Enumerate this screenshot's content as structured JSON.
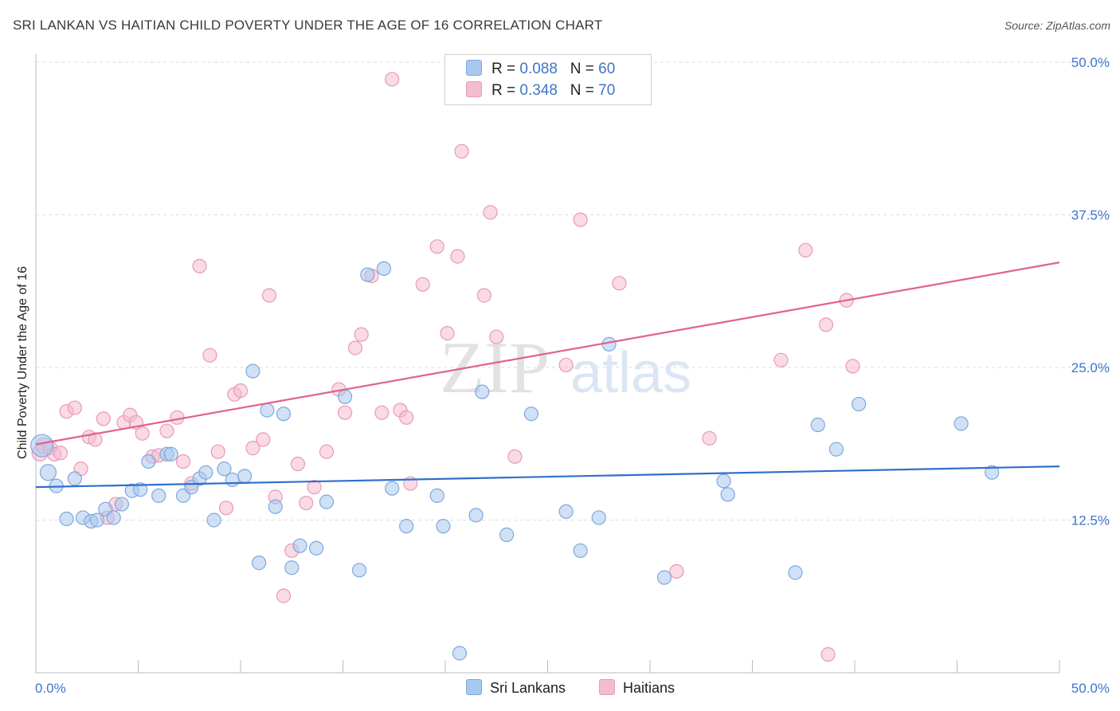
{
  "title": "SRI LANKAN VS HAITIAN CHILD POVERTY UNDER THE AGE OF 16 CORRELATION CHART",
  "source": "Source: ZipAtlas.com",
  "watermark": {
    "zip": "ZIP",
    "atlas": "atlas"
  },
  "legend": {
    "rows": [
      {
        "r_label": "R =",
        "r_value": "0.088",
        "n_label": "N =",
        "n_value": "60"
      },
      {
        "r_label": "R =",
        "r_value": "0.348",
        "n_label": "N =",
        "n_value": "70"
      }
    ]
  },
  "bottom_legend": {
    "series1": "Sri Lankans",
    "series2": "Haitians"
  },
  "colors": {
    "blue_fill": "#a9c8ef",
    "blue_stroke": "#7ea8dd",
    "blue_line": "#2f6fce",
    "pink_fill": "#f4bcd0",
    "pink_stroke": "#e99ab6",
    "pink_line": "#e0628f",
    "tick_text": "#3f75c9",
    "grid": "#dddddd"
  },
  "chart_data": {
    "type": "scatter",
    "title": "SRI LANKAN VS HAITIAN CHILD POVERTY UNDER THE AGE OF 16 CORRELATION CHART",
    "xlabel": "",
    "ylabel": "Child Poverty Under the Age of 16",
    "xlim": [
      0,
      50
    ],
    "ylim": [
      0,
      50
    ],
    "x_tick_labels": [
      "0.0%",
      "50.0%"
    ],
    "y_tick_labels": [
      "12.5%",
      "25.0%",
      "37.5%",
      "50.0%"
    ],
    "y_ticks": [
      12.5,
      25.0,
      37.5,
      50.0
    ],
    "grid": true,
    "legend_position": "top-center",
    "series": [
      {
        "name": "Sri Lankans",
        "R": 0.088,
        "N": 60,
        "trend": {
          "x": [
            0,
            50
          ],
          "y": [
            15.2,
            16.9
          ]
        },
        "points": [
          [
            0.3,
            18.6
          ],
          [
            0.6,
            16.4
          ],
          [
            1.0,
            15.3
          ],
          [
            1.5,
            12.6
          ],
          [
            1.9,
            15.9
          ],
          [
            2.3,
            12.7
          ],
          [
            2.7,
            12.4
          ],
          [
            3.0,
            12.5
          ],
          [
            3.4,
            13.4
          ],
          [
            3.8,
            12.7
          ],
          [
            4.2,
            13.8
          ],
          [
            4.7,
            14.9
          ],
          [
            5.1,
            15.0
          ],
          [
            5.5,
            17.3
          ],
          [
            6.0,
            14.5
          ],
          [
            6.4,
            17.9
          ],
          [
            6.6,
            17.9
          ],
          [
            7.2,
            14.5
          ],
          [
            7.6,
            15.2
          ],
          [
            8.0,
            15.9
          ],
          [
            8.3,
            16.4
          ],
          [
            8.7,
            12.5
          ],
          [
            9.2,
            16.7
          ],
          [
            9.6,
            15.8
          ],
          [
            10.2,
            16.1
          ],
          [
            10.6,
            24.7
          ],
          [
            10.9,
            9.0
          ],
          [
            11.3,
            21.5
          ],
          [
            11.7,
            13.6
          ],
          [
            12.1,
            21.2
          ],
          [
            12.5,
            8.6
          ],
          [
            12.9,
            10.4
          ],
          [
            13.7,
            10.2
          ],
          [
            14.2,
            14.0
          ],
          [
            15.1,
            22.6
          ],
          [
            15.8,
            8.4
          ],
          [
            16.2,
            32.6
          ],
          [
            17.0,
            33.1
          ],
          [
            17.4,
            15.1
          ],
          [
            18.1,
            12.0
          ],
          [
            19.6,
            14.5
          ],
          [
            19.9,
            12.0
          ],
          [
            20.7,
            1.6
          ],
          [
            21.5,
            12.9
          ],
          [
            21.8,
            23.0
          ],
          [
            23.0,
            11.3
          ],
          [
            24.2,
            21.2
          ],
          [
            25.9,
            13.2
          ],
          [
            26.6,
            10.0
          ],
          [
            27.5,
            12.7
          ],
          [
            28.0,
            26.9
          ],
          [
            30.7,
            7.8
          ],
          [
            33.6,
            15.7
          ],
          [
            33.8,
            14.6
          ],
          [
            37.1,
            8.2
          ],
          [
            38.2,
            20.3
          ],
          [
            39.1,
            18.3
          ],
          [
            40.2,
            22.0
          ],
          [
            45.2,
            20.4
          ],
          [
            46.7,
            16.4
          ]
        ]
      },
      {
        "name": "Haitians",
        "R": 0.348,
        "N": 70,
        "trend": {
          "x": [
            0,
            50
          ],
          "y": [
            18.7,
            33.6
          ]
        },
        "points": [
          [
            0.2,
            18.0
          ],
          [
            0.4,
            18.6
          ],
          [
            0.7,
            18.4
          ],
          [
            0.9,
            17.9
          ],
          [
            1.2,
            18.0
          ],
          [
            1.5,
            21.4
          ],
          [
            1.9,
            21.7
          ],
          [
            2.2,
            16.7
          ],
          [
            2.6,
            19.3
          ],
          [
            2.9,
            19.1
          ],
          [
            3.3,
            20.8
          ],
          [
            3.5,
            12.7
          ],
          [
            3.9,
            13.8
          ],
          [
            4.3,
            20.5
          ],
          [
            4.6,
            21.1
          ],
          [
            4.9,
            20.5
          ],
          [
            5.2,
            19.6
          ],
          [
            5.7,
            17.7
          ],
          [
            6.0,
            17.8
          ],
          [
            6.4,
            19.8
          ],
          [
            6.9,
            20.9
          ],
          [
            7.2,
            17.3
          ],
          [
            7.6,
            15.5
          ],
          [
            8.0,
            33.3
          ],
          [
            8.5,
            26.0
          ],
          [
            8.9,
            18.1
          ],
          [
            9.3,
            13.5
          ],
          [
            9.7,
            22.8
          ],
          [
            10.0,
            23.1
          ],
          [
            10.6,
            18.4
          ],
          [
            11.1,
            19.1
          ],
          [
            11.4,
            30.9
          ],
          [
            11.7,
            14.4
          ],
          [
            12.1,
            6.3
          ],
          [
            12.5,
            10.0
          ],
          [
            12.8,
            17.1
          ],
          [
            13.2,
            13.9
          ],
          [
            13.6,
            15.2
          ],
          [
            14.2,
            18.1
          ],
          [
            14.8,
            23.2
          ],
          [
            15.1,
            21.3
          ],
          [
            15.6,
            26.6
          ],
          [
            15.9,
            27.7
          ],
          [
            16.4,
            32.5
          ],
          [
            16.9,
            21.3
          ],
          [
            17.4,
            48.6
          ],
          [
            17.8,
            21.5
          ],
          [
            18.1,
            20.9
          ],
          [
            18.3,
            15.5
          ],
          [
            18.9,
            31.8
          ],
          [
            19.6,
            34.9
          ],
          [
            20.1,
            27.8
          ],
          [
            20.6,
            34.1
          ],
          [
            20.8,
            42.7
          ],
          [
            21.9,
            30.9
          ],
          [
            22.2,
            37.7
          ],
          [
            22.5,
            27.5
          ],
          [
            23.4,
            17.7
          ],
          [
            25.9,
            25.2
          ],
          [
            26.6,
            37.1
          ],
          [
            27.8,
            47.3
          ],
          [
            28.5,
            31.9
          ],
          [
            31.3,
            8.3
          ],
          [
            32.9,
            19.2
          ],
          [
            36.4,
            25.6
          ],
          [
            37.6,
            34.6
          ],
          [
            38.6,
            28.5
          ],
          [
            38.7,
            1.5
          ],
          [
            39.9,
            25.1
          ],
          [
            39.6,
            30.5
          ]
        ]
      }
    ]
  }
}
